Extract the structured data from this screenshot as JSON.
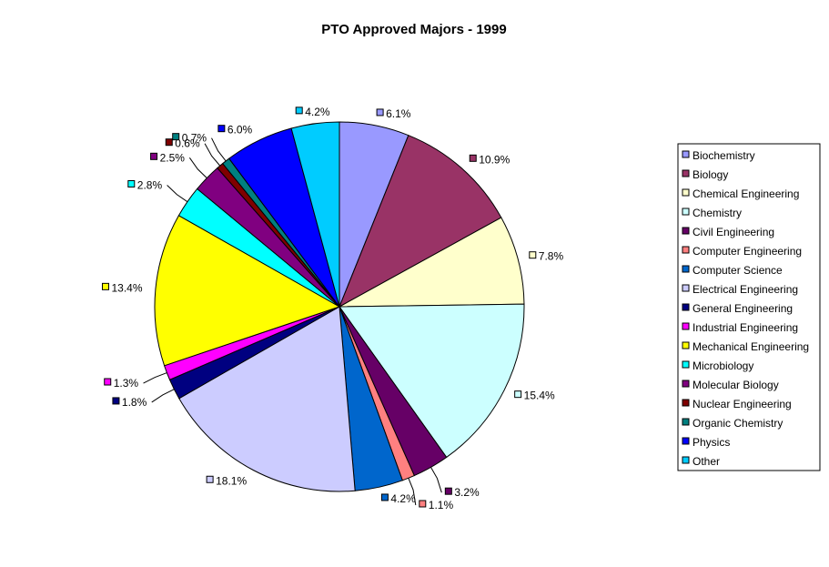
{
  "chart_data": {
    "type": "pie",
    "title": "PTO Approved Majors - 1999",
    "legend_position": "right",
    "slices": [
      {
        "label": "Biochemistry",
        "value": 6.1,
        "display": "6.1%",
        "color": "#9999FF"
      },
      {
        "label": "Biology",
        "value": 10.9,
        "display": "10.9%",
        "color": "#993366"
      },
      {
        "label": "Chemical Engineering",
        "value": 7.8,
        "display": "7.8%",
        "color": "#FFFFCC"
      },
      {
        "label": "Chemistry",
        "value": 15.4,
        "display": "15.4%",
        "color": "#CCFFFF"
      },
      {
        "label": "Civil Engineering",
        "value": 3.2,
        "display": "3.2%",
        "color": "#660066"
      },
      {
        "label": "Computer Engineering",
        "value": 1.1,
        "display": "1.1%",
        "color": "#FF8080"
      },
      {
        "label": "Computer Science",
        "value": 4.2,
        "display": "4.2%",
        "color": "#0066CC"
      },
      {
        "label": "Electrical Engineering",
        "value": 18.1,
        "display": "18.1%",
        "color": "#CCCCFF"
      },
      {
        "label": "General Engineering",
        "value": 1.8,
        "display": "1.8%",
        "color": "#000080"
      },
      {
        "label": "Industrial Engineering",
        "value": 1.3,
        "display": "1.3%",
        "color": "#FF00FF"
      },
      {
        "label": "Mechanical Engineering",
        "value": 13.4,
        "display": "13.4%",
        "color": "#FFFF00"
      },
      {
        "label": "Microbiology",
        "value": 2.8,
        "display": "2.8%",
        "color": "#00FFFF"
      },
      {
        "label": "Molecular Biology",
        "value": 2.5,
        "display": "2.5%",
        "color": "#800080"
      },
      {
        "label": "Nuclear Engineering",
        "value": 0.6,
        "display": "0.6%",
        "color": "#800000"
      },
      {
        "label": "Organic Chemistry",
        "value": 0.7,
        "display": "0.7%",
        "color": "#008080"
      },
      {
        "label": "Physics",
        "value": 6.0,
        "display": "6.0%",
        "color": "#0000FF"
      },
      {
        "label": "Other",
        "value": 4.2,
        "display": "4.2%",
        "color": "#00CCFF"
      }
    ]
  }
}
